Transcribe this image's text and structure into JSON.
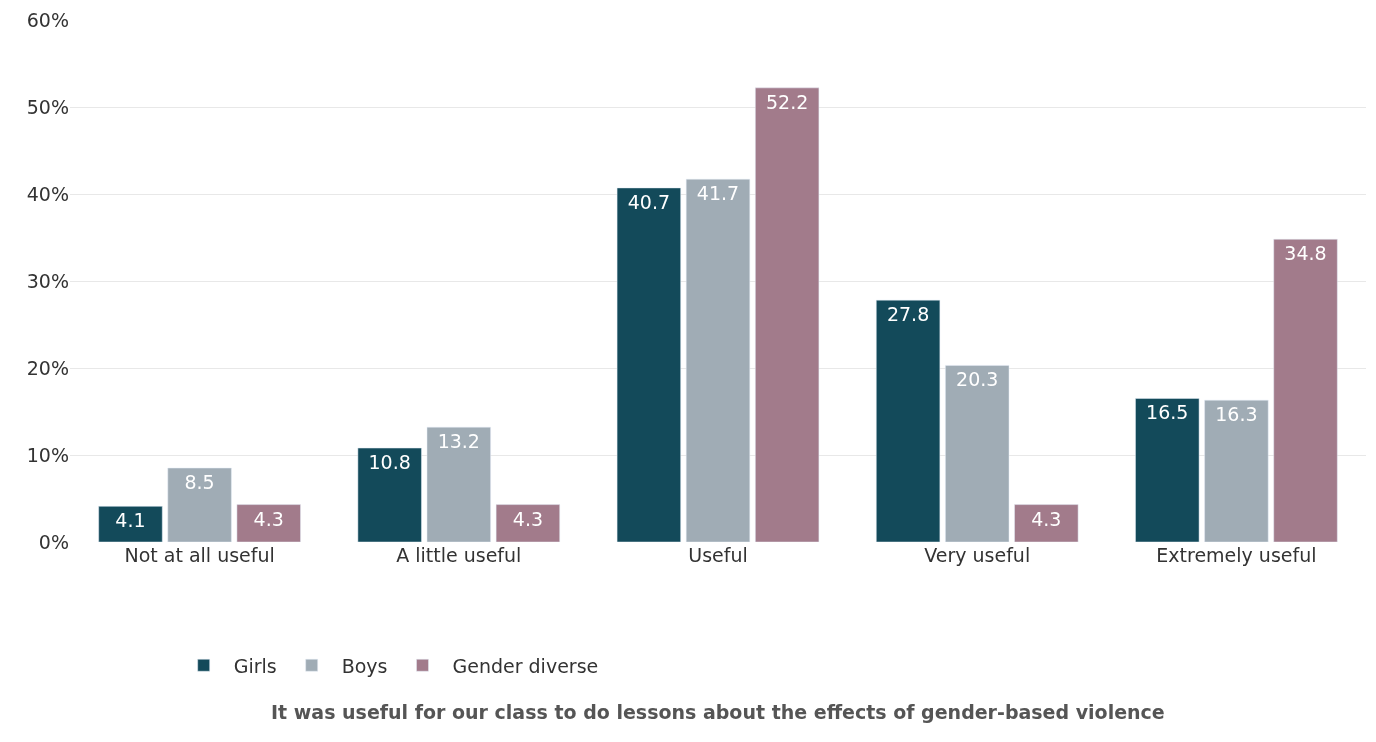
{
  "chart_data": {
    "type": "bar",
    "annotations": [
      "It was useful for our class to do lessons about the effects of gender-based violence"
    ],
    "categories": [
      "Not at all useful",
      "A little useful",
      "Useful",
      "Very useful",
      "Extremely useful"
    ],
    "series": [
      {
        "name": "Girls",
        "color": "#134a5a",
        "values": [
          4.1,
          10.8,
          40.7,
          27.8,
          16.5
        ]
      },
      {
        "name": "Boys",
        "color": "#a0acb5",
        "values": [
          8.5,
          13.2,
          41.7,
          20.3,
          16.3
        ]
      },
      {
        "name": "Gender diverse",
        "color": "#a27b8b",
        "values": [
          4.3,
          4.3,
          52.2,
          4.3,
          34.8
        ]
      }
    ],
    "ylim": [
      0,
      60
    ],
    "yticks": [
      {
        "value": 0,
        "label": "0%"
      },
      {
        "value": 10,
        "label": "10%"
      },
      {
        "value": 20,
        "label": "20%"
      },
      {
        "value": 30,
        "label": "30%"
      },
      {
        "value": 40,
        "label": "40%"
      },
      {
        "value": 50,
        "label": "50%"
      },
      {
        "value": 60,
        "label": "60%"
      }
    ],
    "grid": "y",
    "legend": "bottom",
    "data_labels": true
  }
}
